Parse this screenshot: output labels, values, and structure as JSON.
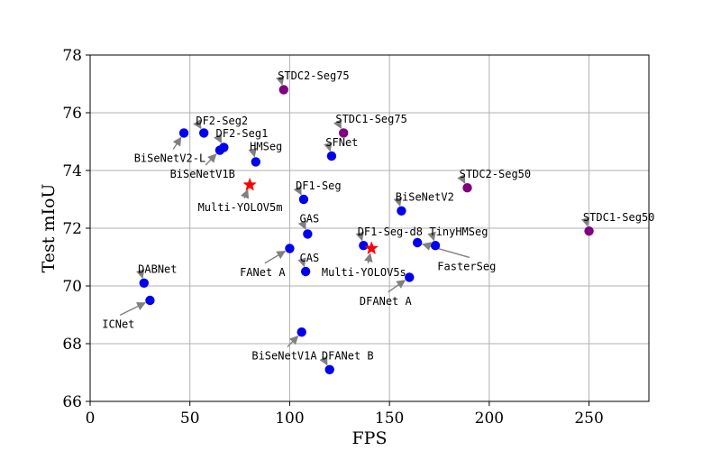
{
  "chart_data": {
    "type": "scatter",
    "title": "",
    "xlabel": "FPS",
    "ylabel": "Test mIoU",
    "xlim": [
      0,
      280
    ],
    "ylim": [
      66,
      78
    ],
    "xticks": [
      0,
      50,
      100,
      150,
      200,
      250
    ],
    "yticks": [
      66,
      68,
      70,
      72,
      74,
      76,
      78
    ],
    "grid": true,
    "colors": {
      "blue": "#0000ee",
      "purple": "#800080",
      "red": "#ff0000",
      "arrow": "#808080"
    },
    "points": [
      {
        "label": "BiSeNetV2-L",
        "x": 47,
        "y": 75.3,
        "color": "blue",
        "marker": "circle",
        "lx": 22,
        "ly": 74.3
      },
      {
        "label": "DF2-Seg2",
        "x": 57,
        "y": 75.3,
        "color": "blue",
        "marker": "circle",
        "lx": 53,
        "ly": 75.6
      },
      {
        "label": "DF2-Seg1",
        "x": 67,
        "y": 74.8,
        "color": "blue",
        "marker": "circle",
        "lx": 63,
        "ly": 75.15
      },
      {
        "label": "BiSeNetV1B",
        "x": 65,
        "y": 74.7,
        "color": "blue",
        "marker": "circle",
        "lx": 40,
        "ly": 73.75
      },
      {
        "label": "HMSeg",
        "x": 83,
        "y": 74.3,
        "color": "blue",
        "marker": "circle",
        "lx": 80,
        "ly": 74.7
      },
      {
        "label": "Multi-YOLOV5m",
        "x": 80,
        "y": 73.5,
        "color": "red",
        "marker": "star",
        "lx": 54,
        "ly": 72.6
      },
      {
        "label": "STDC2-Seg75",
        "x": 97,
        "y": 76.8,
        "color": "purple",
        "marker": "circle",
        "lx": 94,
        "ly": 77.15
      },
      {
        "label": "STDC1-Seg75",
        "x": 127,
        "y": 75.3,
        "color": "purple",
        "marker": "circle",
        "lx": 123,
        "ly": 75.65
      },
      {
        "label": "SFNet",
        "x": 121,
        "y": 74.5,
        "color": "blue",
        "marker": "circle",
        "lx": 118,
        "ly": 74.85
      },
      {
        "label": "DF1-Seg",
        "x": 107,
        "y": 73.0,
        "color": "blue",
        "marker": "circle",
        "lx": 103,
        "ly": 73.35
      },
      {
        "label": "BiSeNetV2",
        "x": 156,
        "y": 72.6,
        "color": "blue",
        "marker": "circle",
        "lx": 153,
        "ly": 72.95
      },
      {
        "label": "STDC2-Seg50",
        "x": 189,
        "y": 73.4,
        "color": "purple",
        "marker": "circle",
        "lx": 185,
        "ly": 73.75
      },
      {
        "label": "STDC1-Seg50",
        "x": 250,
        "y": 71.9,
        "color": "purple",
        "marker": "circle",
        "lx": 247,
        "ly": 72.25
      },
      {
        "label": "GAS",
        "x": 109,
        "y": 71.8,
        "color": "blue",
        "marker": "circle",
        "lx": 105,
        "ly": 72.2
      },
      {
        "label": "DF1-Seg-d8",
        "x": 137,
        "y": 71.4,
        "color": "blue",
        "marker": "circle",
        "lx": 134,
        "ly": 71.75
      },
      {
        "label": "Multi-YOLOV5s",
        "x": 141,
        "y": 71.3,
        "color": "red",
        "marker": "star",
        "lx": 116,
        "ly": 70.35
      },
      {
        "label": "TinyHMSeg",
        "x": 173,
        "y": 71.4,
        "color": "blue",
        "marker": "circle",
        "lx": 170,
        "ly": 71.75
      },
      {
        "label": "FasterSeg",
        "x": 164,
        "y": 71.5,
        "color": "blue",
        "marker": "circle",
        "lx": 174,
        "ly": 70.55
      },
      {
        "label": "FANet A",
        "x": 100,
        "y": 71.3,
        "color": "blue",
        "marker": "circle",
        "lx": 75,
        "ly": 70.35
      },
      {
        "label": "CAS",
        "x": 108,
        "y": 70.5,
        "color": "blue",
        "marker": "circle",
        "lx": 105,
        "ly": 70.85
      },
      {
        "label": "DFANet A",
        "x": 160,
        "y": 70.3,
        "color": "blue",
        "marker": "circle",
        "lx": 135,
        "ly": 69.35
      },
      {
        "label": "DABNet",
        "x": 27,
        "y": 70.1,
        "color": "blue",
        "marker": "circle",
        "lx": 24,
        "ly": 70.45
      },
      {
        "label": "ICNet",
        "x": 30,
        "y": 69.5,
        "color": "blue",
        "marker": "circle",
        "lx": 6,
        "ly": 68.55
      },
      {
        "label": "BiSeNetV1A",
        "x": 106,
        "y": 68.4,
        "color": "blue",
        "marker": "circle",
        "lx": 81,
        "ly": 67.45
      },
      {
        "label": "DFANet B",
        "x": 120,
        "y": 67.1,
        "color": "blue",
        "marker": "circle",
        "lx": 116,
        "ly": 67.45
      }
    ]
  }
}
